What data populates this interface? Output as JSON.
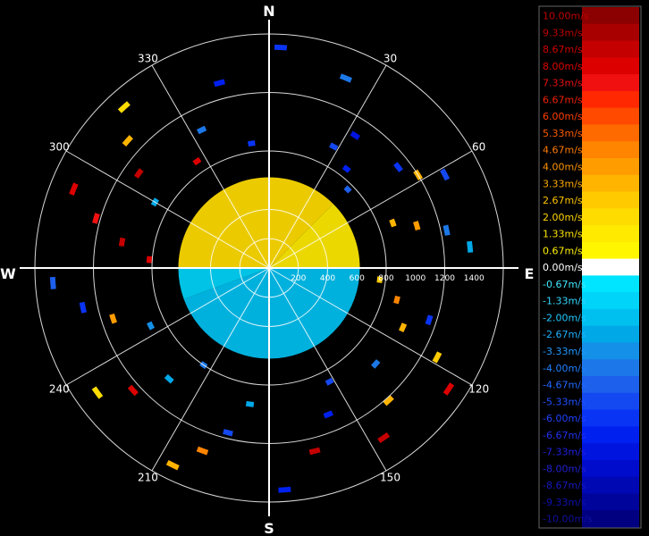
{
  "chart_data": {
    "type": "polar-heatmap",
    "title": "",
    "compass": {
      "north": "N",
      "east": "E",
      "south": "S",
      "west": "W"
    },
    "bearing_labels": [
      "30",
      "60",
      "120",
      "150",
      "210",
      "240",
      "300",
      "330"
    ],
    "bearings_deg": [
      30,
      60,
      120,
      150,
      210,
      240,
      300,
      330
    ],
    "range_tick_labels": [
      "200",
      "400",
      "600",
      "800",
      "1000",
      "1200",
      "1400"
    ],
    "range_ticks": [
      200,
      400,
      600,
      800,
      1000,
      1200,
      1400
    ],
    "range_max": 1600,
    "grid": true,
    "colorbar": {
      "position": "right",
      "labels": [
        "10.00m/s",
        "9.33m/s",
        "8.67m/s",
        "8.00m/s",
        "7.33m/s",
        "6.67m/s",
        "6.00m/s",
        "5.33m/s",
        "4.67m/s",
        "4.00m/s",
        "3.33m/s",
        "2.67m/s",
        "2.00m/s",
        "1.33m/s",
        "0.67m/s",
        "0.00m/s",
        "-0.67m/s",
        "-1.33m/s",
        "-2.00m/s",
        "-2.67m/s",
        "-3.33m/s",
        "-4.00m/s",
        "-4.67m/s",
        "-5.33m/s",
        "-6.00m/s",
        "-6.67m/s",
        "-7.33m/s",
        "-8.00m/s",
        "-8.67m/s",
        "-9.33m/s",
        "-10.00m/s"
      ],
      "values": [
        10.0,
        9.33,
        8.67,
        8.0,
        7.33,
        6.67,
        6.0,
        5.33,
        4.67,
        4.0,
        3.33,
        2.67,
        2.0,
        1.33,
        0.67,
        0.0,
        -0.67,
        -1.33,
        -2.0,
        -2.67,
        -3.33,
        -4.0,
        -4.67,
        -5.33,
        -6.0,
        -6.67,
        -7.33,
        -8.0,
        -8.67,
        -9.33,
        -10.0
      ],
      "colors": [
        "#8b0000",
        "#a80000",
        "#c40000",
        "#dc0000",
        "#f01010",
        "#ff2800",
        "#ff4a00",
        "#ff6a00",
        "#ff8400",
        "#ff9c00",
        "#ffb400",
        "#ffcb00",
        "#ffdc00",
        "#ffea00",
        "#fff600",
        "#ffffff",
        "#00e5ff",
        "#00d4f8",
        "#00c0f0",
        "#00a8e8",
        "#1490e8",
        "#1c78e8",
        "#1c60ec",
        "#1448f0",
        "#0a34f4",
        "#0020f0",
        "#0014e0",
        "#000ccc",
        "#0008b4",
        "#00049a",
        "#000080"
      ],
      "label_colors": [
        "#c00000",
        "#c00000",
        "#d00000",
        "#e00000",
        "#e81010",
        "#f02000",
        "#ff3c00",
        "#ff5a00",
        "#ff7a00",
        "#ff9400",
        "#ffac00",
        "#ffc400",
        "#ffd400",
        "#ffe400",
        "#fff000",
        "#ffffff",
        "#40e8ff",
        "#30d8ff",
        "#20c8ff",
        "#20b0ff",
        "#2098ff",
        "#2080ff",
        "#2068ff",
        "#2050ff",
        "#2040ff",
        "#2030f0",
        "#2020e0",
        "#2020d0",
        "#1818c0",
        "#1010b0",
        "#1010a0"
      ]
    },
    "near_field": {
      "range_m": [
        0,
        620
      ],
      "sectors": [
        {
          "from_deg": 270,
          "to_deg": 360,
          "velocity_ms": 2.0
        },
        {
          "from_deg": 0,
          "to_deg": 45,
          "velocity_ms": 2.0
        },
        {
          "from_deg": 45,
          "to_deg": 90,
          "velocity_ms": 1.33
        },
        {
          "from_deg": 90,
          "to_deg": 250,
          "velocity_ms": -2.0
        },
        {
          "from_deg": 250,
          "to_deg": 270,
          "velocity_ms": -1.33
        }
      ]
    },
    "scatter_cells": [
      {
        "az": 345,
        "r": 1310,
        "v": -6.67
      },
      {
        "az": 3,
        "r": 1510,
        "v": -6.0
      },
      {
        "az": 22,
        "r": 1400,
        "v": -4.0
      },
      {
        "az": 33,
        "r": 1080,
        "v": -7.33
      },
      {
        "az": 28,
        "r": 940,
        "v": -5.33
      },
      {
        "az": 38,
        "r": 860,
        "v": -6.67
      },
      {
        "az": 45,
        "r": 760,
        "v": -4.67
      },
      {
        "az": 52,
        "r": 1120,
        "v": -6.0
      },
      {
        "az": 58,
        "r": 1200,
        "v": 3.33
      },
      {
        "az": 62,
        "r": 1360,
        "v": -5.33
      },
      {
        "az": 70,
        "r": 900,
        "v": 3.33
      },
      {
        "az": 74,
        "r": 1050,
        "v": 4.0
      },
      {
        "az": 78,
        "r": 1240,
        "v": -4.0
      },
      {
        "az": 84,
        "r": 1380,
        "v": -2.67
      },
      {
        "az": 96,
        "r": 760,
        "v": 2.67
      },
      {
        "az": 104,
        "r": 900,
        "v": 4.67
      },
      {
        "az": 108,
        "r": 1150,
        "v": -6.0
      },
      {
        "az": 114,
        "r": 1000,
        "v": 3.33
      },
      {
        "az": 118,
        "r": 1300,
        "v": 2.67
      },
      {
        "az": 124,
        "r": 1480,
        "v": 8.0
      },
      {
        "az": 132,
        "r": 980,
        "v": -4.0
      },
      {
        "az": 138,
        "r": 1220,
        "v": 3.33
      },
      {
        "az": 146,
        "r": 1400,
        "v": 8.67
      },
      {
        "az": 152,
        "r": 880,
        "v": -5.33
      },
      {
        "az": 158,
        "r": 1080,
        "v": -6.67
      },
      {
        "az": 166,
        "r": 1290,
        "v": 8.67
      },
      {
        "az": 176,
        "r": 1520,
        "v": -6.67
      },
      {
        "az": 188,
        "r": 940,
        "v": -2.67
      },
      {
        "az": 194,
        "r": 1160,
        "v": -5.33
      },
      {
        "az": 200,
        "r": 1330,
        "v": 4.67
      },
      {
        "az": 206,
        "r": 1500,
        "v": 3.33
      },
      {
        "az": 214,
        "r": 800,
        "v": -4.0
      },
      {
        "az": 222,
        "r": 1020,
        "v": -2.67
      },
      {
        "az": 228,
        "r": 1250,
        "v": 8.0
      },
      {
        "az": 234,
        "r": 1450,
        "v": 2.0
      },
      {
        "az": 244,
        "r": 900,
        "v": -3.33
      },
      {
        "az": 252,
        "r": 1120,
        "v": 4.0
      },
      {
        "az": 258,
        "r": 1300,
        "v": -6.0
      },
      {
        "az": 266,
        "r": 1480,
        "v": -4.67
      },
      {
        "az": 274,
        "r": 820,
        "v": 8.0
      },
      {
        "az": 280,
        "r": 1020,
        "v": 8.67
      },
      {
        "az": 286,
        "r": 1230,
        "v": 7.33
      },
      {
        "az": 292,
        "r": 1440,
        "v": 8.0
      },
      {
        "az": 300,
        "r": 900,
        "v": -2.67
      },
      {
        "az": 306,
        "r": 1100,
        "v": 8.67
      },
      {
        "az": 312,
        "r": 1300,
        "v": 3.33
      },
      {
        "az": 318,
        "r": 1480,
        "v": 2.0
      },
      {
        "az": 326,
        "r": 880,
        "v": 8.0
      },
      {
        "az": 334,
        "r": 1050,
        "v": -4.0
      },
      {
        "az": 352,
        "r": 860,
        "v": -6.0
      }
    ]
  }
}
